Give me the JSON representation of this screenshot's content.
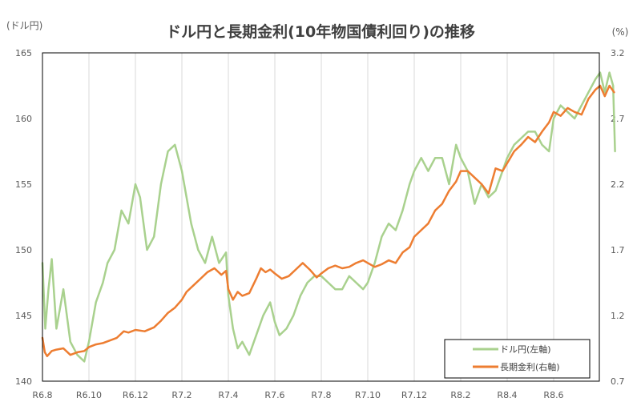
{
  "chart_data": {
    "type": "line",
    "title": "ドル円と長期金利(10年物国債利回り)の推移",
    "left_unit": "(ドル円)",
    "right_unit": "(%)",
    "categories": [
      "R6.8",
      "R6.10",
      "R6.12",
      "R7.2",
      "R7.4",
      "R7.6",
      "R7.8",
      "R7.10",
      "R7.12",
      "R8.2",
      "R8.4",
      "R8.6"
    ],
    "grid": "vertical",
    "legend_position": "bottom-right",
    "y_left": {
      "lim": [
        140,
        165
      ],
      "ticks": [
        140,
        145,
        150,
        155,
        160,
        165
      ]
    },
    "y_right": {
      "lim": [
        0.7,
        3.2
      ],
      "ticks": [
        "0.7",
        "1.2",
        "1.7",
        "2.2",
        "2.7",
        "3.2"
      ]
    },
    "colors": {
      "usdjpy": "#a9d18e",
      "jgb10y": "#ed7d31"
    },
    "series": [
      {
        "name": "ドル円(左軸)",
        "axis": "left",
        "x": [
          0,
          0.06,
          0.13,
          0.2,
          0.3,
          0.45,
          0.6,
          0.75,
          0.9,
          1.0,
          1.15,
          1.3,
          1.4,
          1.55,
          1.7,
          1.85,
          2.0,
          2.1,
          2.25,
          2.4,
          2.55,
          2.7,
          2.85,
          3.0,
          3.1,
          3.2,
          3.35,
          3.5,
          3.65,
          3.8,
          3.95,
          4.0,
          4.1,
          4.2,
          4.3,
          4.45,
          4.6,
          4.75,
          4.9,
          5.0,
          5.1,
          5.25,
          5.4,
          5.55,
          5.7,
          5.85,
          6.0,
          6.15,
          6.3,
          6.45,
          6.6,
          6.75,
          6.9,
          7.0,
          7.15,
          7.3,
          7.45,
          7.6,
          7.75,
          7.9,
          8.0,
          8.15,
          8.3,
          8.45,
          8.6,
          8.75,
          8.9,
          9.0,
          9.15,
          9.3,
          9.45,
          9.6,
          9.75,
          9.9,
          10.0,
          10.15,
          10.3,
          10.45,
          10.6,
          10.75,
          10.9,
          11.0,
          11.15,
          11.3,
          11.45,
          11.6,
          11.75,
          11.9,
          12.0,
          12.1,
          12.2,
          12.28,
          12.32
        ],
        "values": [
          149.0,
          144.0,
          147.0,
          149.3,
          144.0,
          147.0,
          143.0,
          142.0,
          141.5,
          143.0,
          146.0,
          147.5,
          149.0,
          150.0,
          153.0,
          152.0,
          155.0,
          154.0,
          150.0,
          151.0,
          155.0,
          157.5,
          158.0,
          156.0,
          154.0,
          152.0,
          150.0,
          149.0,
          151.0,
          149.0,
          149.8,
          146.5,
          144.0,
          142.5,
          143.0,
          142.0,
          143.5,
          145.0,
          146.0,
          144.5,
          143.5,
          144.0,
          145.0,
          146.5,
          147.5,
          148.0,
          148.0,
          147.5,
          147.0,
          147.0,
          148.0,
          147.5,
          147.0,
          147.5,
          149.0,
          151.0,
          152.0,
          151.5,
          153.0,
          155.0,
          156.0,
          157.0,
          156.0,
          157.0,
          157.0,
          155.0,
          158.0,
          157.0,
          156.0,
          153.5,
          155.0,
          154.0,
          154.5,
          156.0,
          157.0,
          158.0,
          158.5,
          159.0,
          159.0,
          158.0,
          157.5,
          160.0,
          161.0,
          160.5,
          160.0,
          161.0,
          162.0,
          163.0,
          163.5,
          162.0,
          163.5,
          162.5,
          157.5
        ]
      },
      {
        "name": "長期金利(右軸)",
        "axis": "right",
        "x": [
          0,
          0.05,
          0.1,
          0.2,
          0.3,
          0.45,
          0.6,
          0.75,
          0.9,
          1.0,
          1.15,
          1.3,
          1.45,
          1.6,
          1.75,
          1.85,
          2.0,
          2.2,
          2.4,
          2.55,
          2.7,
          2.85,
          3.0,
          3.1,
          3.25,
          3.4,
          3.55,
          3.7,
          3.85,
          3.95,
          4.0,
          4.1,
          4.2,
          4.3,
          4.45,
          4.6,
          4.7,
          4.8,
          4.9,
          5.0,
          5.15,
          5.3,
          5.45,
          5.6,
          5.75,
          5.9,
          6.0,
          6.15,
          6.3,
          6.45,
          6.6,
          6.75,
          6.9,
          7.0,
          7.15,
          7.3,
          7.45,
          7.6,
          7.75,
          7.9,
          8.0,
          8.15,
          8.3,
          8.45,
          8.6,
          8.75,
          8.9,
          9.0,
          9.15,
          9.3,
          9.45,
          9.6,
          9.75,
          9.9,
          10.0,
          10.15,
          10.3,
          10.45,
          10.6,
          10.75,
          10.9,
          11.0,
          11.15,
          11.3,
          11.45,
          11.6,
          11.75,
          11.9,
          12.0,
          12.1,
          12.2,
          12.3
        ],
        "values": [
          1.03,
          0.92,
          0.89,
          0.93,
          0.94,
          0.95,
          0.9,
          0.92,
          0.93,
          0.96,
          0.98,
          0.99,
          1.01,
          1.03,
          1.08,
          1.07,
          1.09,
          1.08,
          1.11,
          1.16,
          1.22,
          1.26,
          1.32,
          1.38,
          1.43,
          1.48,
          1.53,
          1.56,
          1.51,
          1.54,
          1.4,
          1.32,
          1.38,
          1.35,
          1.37,
          1.48,
          1.56,
          1.53,
          1.55,
          1.52,
          1.48,
          1.5,
          1.55,
          1.6,
          1.55,
          1.49,
          1.52,
          1.56,
          1.58,
          1.56,
          1.57,
          1.6,
          1.62,
          1.6,
          1.57,
          1.59,
          1.62,
          1.6,
          1.68,
          1.72,
          1.8,
          1.85,
          1.9,
          2.0,
          2.05,
          2.15,
          2.22,
          2.3,
          2.3,
          2.25,
          2.2,
          2.13,
          2.32,
          2.3,
          2.36,
          2.45,
          2.5,
          2.56,
          2.52,
          2.6,
          2.67,
          2.75,
          2.72,
          2.78,
          2.75,
          2.73,
          2.85,
          2.92,
          2.95,
          2.87,
          2.95,
          2.9
        ]
      }
    ]
  }
}
